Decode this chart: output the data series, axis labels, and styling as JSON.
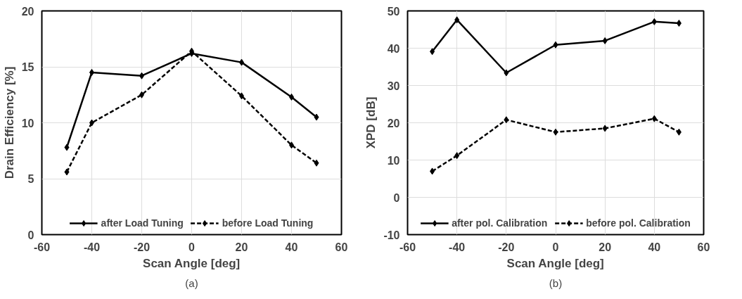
{
  "chart_data": [
    {
      "type": "line",
      "xlabel": "Scan Angle [deg]",
      "ylabel": "Drain Efficiency [%]",
      "x": [
        -50,
        -40,
        -20,
        0,
        20,
        40,
        50
      ],
      "series": [
        {
          "name": "after Load Tuning",
          "color": "#000000",
          "line_style": "solid",
          "values": [
            7.8,
            14.5,
            14.2,
            16.2,
            15.4,
            12.3,
            10.5
          ]
        },
        {
          "name": "before Load Tuning",
          "color": "#000000",
          "line_style": "dashed",
          "values": [
            5.6,
            10.0,
            12.5,
            16.4,
            12.4,
            8.0,
            6.4
          ]
        }
      ],
      "xlim": [
        -60,
        60
      ],
      "xticks": [
        -60,
        -40,
        -20,
        0,
        20,
        40,
        60
      ],
      "ylim": [
        0,
        20
      ],
      "yticks": [
        0,
        5,
        10,
        15,
        20
      ],
      "grid": true,
      "legend": "bottom",
      "marker": "diamond",
      "annotations": [
        "(a)"
      ]
    },
    {
      "type": "line",
      "xlabel": "Scan Angle [deg]",
      "ylabel": "XPD [dB]",
      "x": [
        -50,
        -40,
        -20,
        0,
        20,
        40,
        50
      ],
      "series": [
        {
          "name": "after pol. Calibration",
          "color": "#000000",
          "line_style": "solid",
          "values": [
            39.1,
            47.6,
            33.4,
            40.9,
            42.0,
            47.1,
            46.7
          ]
        },
        {
          "name": "before pol. Calibration",
          "color": "#000000",
          "line_style": "dashed",
          "values": [
            7.0,
            11.2,
            20.8,
            17.5,
            18.5,
            21.1,
            17.5
          ]
        }
      ],
      "xlim": [
        -60,
        60
      ],
      "xticks": [
        -60,
        -40,
        -20,
        0,
        20,
        40,
        60
      ],
      "ylim": [
        -10,
        50
      ],
      "yticks": [
        -10,
        0,
        10,
        20,
        30,
        40,
        50
      ],
      "grid": true,
      "legend": "bottom",
      "marker": "diamond",
      "annotations": [
        "(b)"
      ]
    }
  ]
}
